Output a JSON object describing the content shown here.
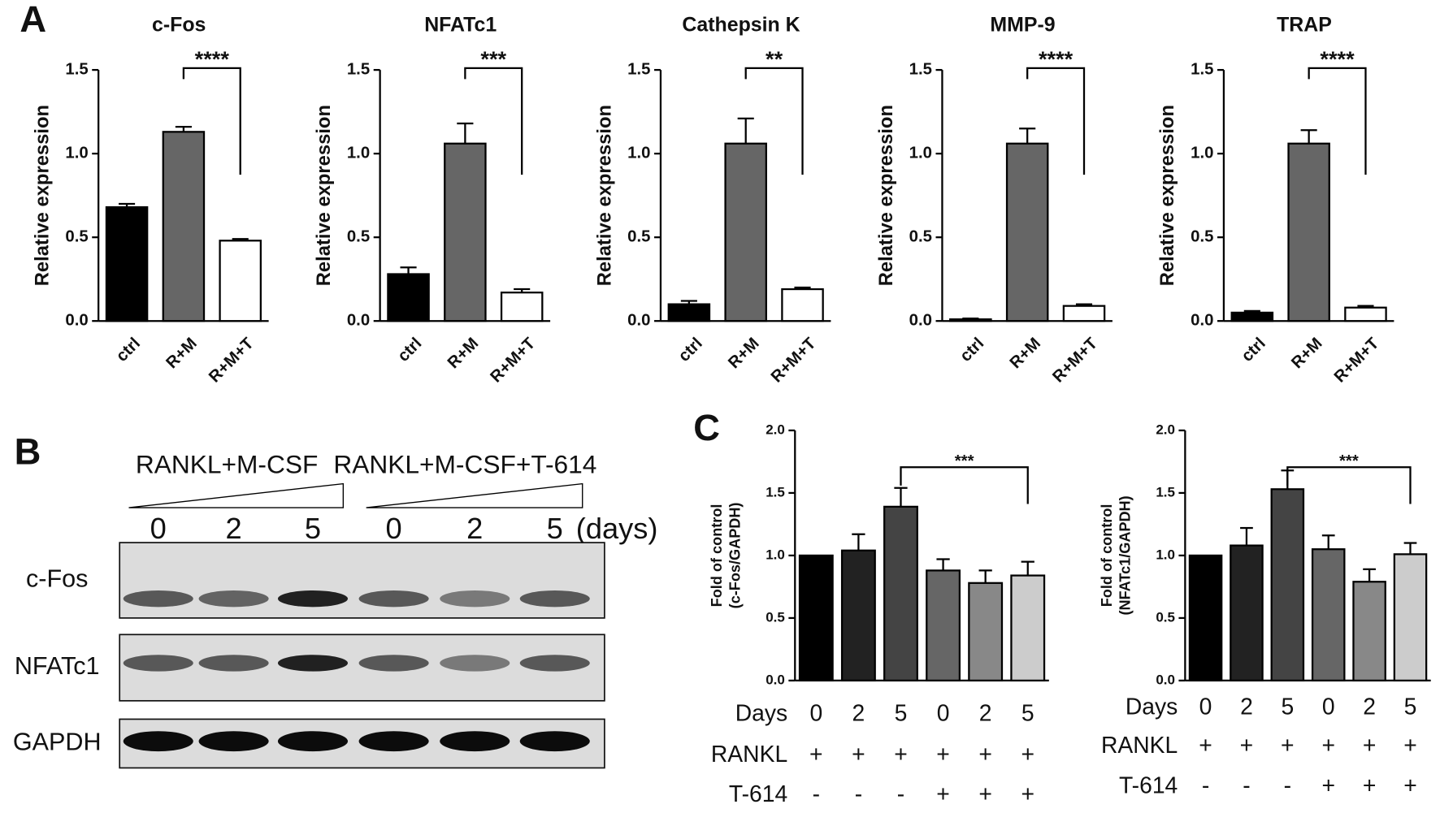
{
  "panel_labels": [
    "A",
    "B",
    "C"
  ],
  "chart_data": [
    {
      "type": "bar",
      "title": "c-Fos",
      "y_label": [
        "Relative expression"
      ],
      "categories": [
        "ctrl",
        "R+M",
        "R+M+T"
      ],
      "values": [
        0.68,
        1.13,
        0.48
      ],
      "errors": [
        0.02,
        0.03,
        0.01
      ],
      "colors": [
        "#000000",
        "#666666",
        "#ffffff"
      ],
      "ylim": [
        0,
        1.5
      ],
      "yticks": [
        {
          "value": 0,
          "label": "0.0"
        },
        {
          "value": 0.5,
          "label": "0.5"
        },
        {
          "value": 1,
          "label": "1.0"
        },
        {
          "value": 1.5,
          "label": "1.5"
        }
      ],
      "annotations": [
        {
          "text": "****",
          "between": [
            1,
            2
          ]
        }
      ]
    },
    {
      "type": "bar",
      "title": "NFATc1",
      "y_label": [
        "Relative expression"
      ],
      "categories": [
        "ctrl",
        "R+M",
        "R+M+T"
      ],
      "values": [
        0.28,
        1.06,
        0.17
      ],
      "errors": [
        0.04,
        0.12,
        0.02
      ],
      "colors": [
        "#000000",
        "#666666",
        "#ffffff"
      ],
      "ylim": [
        0,
        1.5
      ],
      "yticks": [
        {
          "value": 0,
          "label": "0.0"
        },
        {
          "value": 0.5,
          "label": "0.5"
        },
        {
          "value": 1,
          "label": "1.0"
        },
        {
          "value": 1.5,
          "label": "1.5"
        }
      ],
      "annotations": [
        {
          "text": "***",
          "between": [
            1,
            2
          ]
        }
      ]
    },
    {
      "type": "bar",
      "title": "Cathepsin K",
      "y_label": [
        "Relative expression"
      ],
      "categories": [
        "ctrl",
        "R+M",
        "R+M+T"
      ],
      "values": [
        0.1,
        1.06,
        0.19
      ],
      "errors": [
        0.02,
        0.15,
        0.01
      ],
      "colors": [
        "#000000",
        "#666666",
        "#ffffff"
      ],
      "ylim": [
        0,
        1.5
      ],
      "yticks": [
        {
          "value": 0,
          "label": "0.0"
        },
        {
          "value": 0.5,
          "label": "0.5"
        },
        {
          "value": 1,
          "label": "1.0"
        },
        {
          "value": 1.5,
          "label": "1.5"
        }
      ],
      "annotations": [
        {
          "text": "**",
          "between": [
            1,
            2
          ]
        }
      ]
    },
    {
      "type": "bar",
      "title": "MMP-9",
      "y_label": [
        "Relative expression"
      ],
      "categories": [
        "ctrl",
        "R+M",
        "R+M+T"
      ],
      "values": [
        0.01,
        1.06,
        0.09
      ],
      "errors": [
        0.005,
        0.09,
        0.01
      ],
      "colors": [
        "#000000",
        "#666666",
        "#ffffff"
      ],
      "ylim": [
        0,
        1.5
      ],
      "yticks": [
        {
          "value": 0,
          "label": "0.0"
        },
        {
          "value": 0.5,
          "label": "0.5"
        },
        {
          "value": 1,
          "label": "1.0"
        },
        {
          "value": 1.5,
          "label": "1.5"
        }
      ],
      "annotations": [
        {
          "text": "****",
          "between": [
            1,
            2
          ]
        }
      ]
    },
    {
      "type": "bar",
      "title": "TRAP",
      "y_label": [
        "Relative expression"
      ],
      "categories": [
        "ctrl",
        "R+M",
        "R+M+T"
      ],
      "values": [
        0.05,
        1.06,
        0.08
      ],
      "errors": [
        0.01,
        0.08,
        0.01
      ],
      "colors": [
        "#000000",
        "#666666",
        "#ffffff"
      ],
      "ylim": [
        0,
        1.5
      ],
      "yticks": [
        {
          "value": 0,
          "label": "0.0"
        },
        {
          "value": 0.5,
          "label": "0.5"
        },
        {
          "value": 1,
          "label": "1.0"
        },
        {
          "value": 1.5,
          "label": "1.5"
        }
      ],
      "annotations": [
        {
          "text": "****",
          "between": [
            1,
            2
          ]
        }
      ]
    },
    {
      "type": "bar",
      "y_label": [
        "Fold of control",
        "(c-Fos/GAPDH)"
      ],
      "x_label": "Days",
      "categories": [
        "0",
        "2",
        "5",
        "0",
        "2",
        "5"
      ],
      "values": [
        1.0,
        1.04,
        1.39,
        0.88,
        0.78,
        0.84
      ],
      "errors": [
        0,
        0.13,
        0.15,
        0.09,
        0.1,
        0.11
      ],
      "colors": [
        "#000000",
        "#222222",
        "#444444",
        "#666666",
        "#888888",
        "#cccccc"
      ],
      "ylim": [
        0,
        2
      ],
      "yticks": [
        {
          "value": 0,
          "label": "0.0"
        },
        {
          "value": 0.5,
          "label": "0.5"
        },
        {
          "value": 1,
          "label": "1.0"
        },
        {
          "value": 1.5,
          "label": "1.5"
        },
        {
          "value": 2,
          "label": "2.0"
        }
      ],
      "conditions": [
        {
          "name": "RANKL",
          "values": [
            "+",
            "+",
            "+",
            "+",
            "+",
            "+"
          ]
        },
        {
          "name": "T-614",
          "values": [
            "-",
            "-",
            "-",
            "+",
            "+",
            "+"
          ]
        }
      ],
      "annotations": [
        {
          "text": "***",
          "between": [
            2,
            5
          ]
        }
      ]
    },
    {
      "type": "bar",
      "y_label": [
        "Fold of control",
        "(NFATc1/GAPDH)"
      ],
      "x_label": "Days",
      "categories": [
        "0",
        "2",
        "5",
        "0",
        "2",
        "5"
      ],
      "values": [
        1.0,
        1.08,
        1.53,
        1.05,
        0.79,
        1.01
      ],
      "errors": [
        0,
        0.14,
        0.15,
        0.11,
        0.1,
        0.09
      ],
      "colors": [
        "#000000",
        "#222222",
        "#444444",
        "#666666",
        "#888888",
        "#cccccc"
      ],
      "ylim": [
        0,
        2
      ],
      "yticks": [
        {
          "value": 0,
          "label": "0.0"
        },
        {
          "value": 0.5,
          "label": "0.5"
        },
        {
          "value": 1,
          "label": "1.0"
        },
        {
          "value": 1.5,
          "label": "1.5"
        },
        {
          "value": 2,
          "label": "2.0"
        }
      ],
      "conditions": [
        {
          "name": "RANKL",
          "values": [
            "+",
            "+",
            "+",
            "+",
            "+",
            "+"
          ]
        },
        {
          "name": "T-614",
          "values": [
            "-",
            "-",
            "-",
            "+",
            "+",
            "+"
          ]
        }
      ],
      "annotations": [
        {
          "text": "***",
          "between": [
            2,
            5
          ]
        }
      ]
    }
  ],
  "blot": {
    "groups": [
      "RANKL+M-CSF",
      "RANKL+M-CSF+T-614"
    ],
    "lanes": [
      "0",
      "2",
      "5",
      "0",
      "2",
      "5"
    ],
    "unit": "(days)",
    "rows": [
      "c-Fos",
      "NFATc1",
      "GAPDH"
    ]
  }
}
